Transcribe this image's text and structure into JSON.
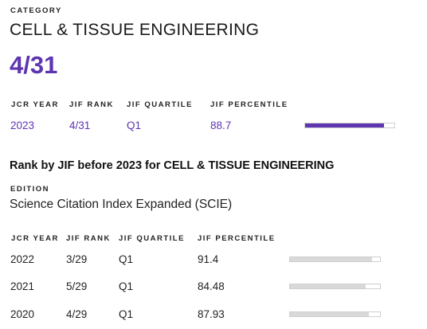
{
  "category": {
    "label": "CATEGORY",
    "name": "CELL & TISSUE ENGINEERING",
    "rank": "4/31"
  },
  "current": {
    "headers": [
      "JCR YEAR",
      "JIF RANK",
      "JIF QUARTILE",
      "JIF PERCENTILE"
    ],
    "row": {
      "year": "2023",
      "rank": "4/31",
      "quartile": "Q1",
      "percentile": "88.7",
      "percentile_value": 88.7
    },
    "bar_color": "#5e35b1"
  },
  "history": {
    "title": "Rank by JIF before 2023 for CELL & TISSUE ENGINEERING",
    "edition_label": "EDITION",
    "edition_value": "Science Citation Index Expanded (SCIE)",
    "headers": [
      "JCR YEAR",
      "JIF RANK",
      "JIF QUARTILE",
      "JIF PERCENTILE"
    ],
    "rows": [
      {
        "year": "2022",
        "rank": "3/29",
        "quartile": "Q1",
        "percentile": "91.4",
        "percentile_value": 91.4
      },
      {
        "year": "2021",
        "rank": "5/29",
        "quartile": "Q1",
        "percentile": "84.48",
        "percentile_value": 84.48
      },
      {
        "year": "2020",
        "rank": "4/29",
        "quartile": "Q1",
        "percentile": "87.93",
        "percentile_value": 87.93
      }
    ],
    "bar_color": "#d9d9d9"
  }
}
